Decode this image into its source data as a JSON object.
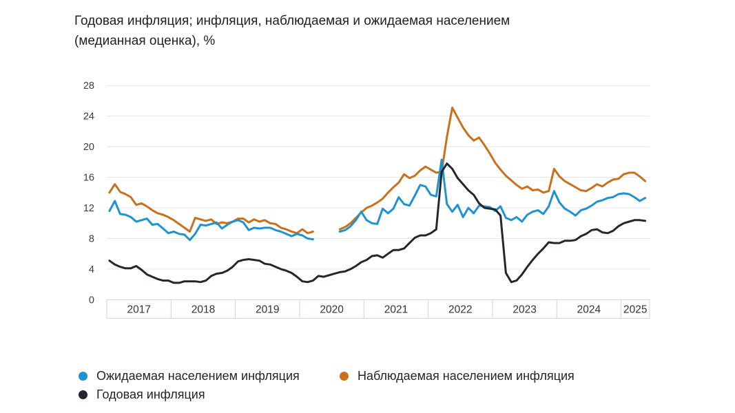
{
  "title_lines": [
    "Годовая инфляция; инфляция, наблюдаемая и ожидаемая населением",
    "(медианная оценка), %"
  ],
  "colors": {
    "grid": "#E4E4E4",
    "axis_box_border": "#C8D6E8",
    "tick_text": "#3C3C3C",
    "year_text": "#333333",
    "title_text": "#212121"
  },
  "chart_data": {
    "type": "line",
    "title": "Годовая инфляция; инфляция, наблюдаемая и ожидаемая населением (медианная оценка), %",
    "ylabel": "%",
    "ylim": [
      0,
      28
    ],
    "y_ticks": [
      28,
      24,
      20,
      16,
      12,
      8,
      4,
      0
    ],
    "x_year_labels": [
      "2017",
      "2018",
      "2019",
      "2020",
      "2021",
      "2022",
      "2023",
      "2024",
      "2025"
    ],
    "frequency": "monthly",
    "start": "2017-01",
    "end": "2025-05",
    "survey_gap_months": [
      "2020-04",
      "2020-05",
      "2020-06",
      "2020-07"
    ],
    "grid": "on",
    "legend_position": "bottom",
    "series": [
      {
        "id": "expected",
        "name": "Ожидаемая населением инфляция",
        "color": "#1E93D1",
        "values": [
          11.6,
          12.9,
          11.2,
          11.1,
          10.8,
          10.2,
          10.4,
          10.6,
          9.8,
          9.9,
          9.3,
          8.7,
          8.9,
          8.6,
          8.5,
          7.8,
          8.6,
          9.8,
          9.7,
          9.9,
          10.1,
          9.3,
          9.8,
          10.2,
          10.4,
          10.1,
          9.1,
          9.4,
          9.3,
          9.4,
          9.4,
          9.1,
          8.9,
          8.6,
          8.3,
          8.6,
          8.4,
          8.0,
          7.9,
          null,
          null,
          null,
          null,
          8.9,
          9.1,
          9.6,
          10.4,
          11.5,
          10.4,
          10.0,
          9.9,
          11.9,
          11.3,
          11.9,
          13.4,
          12.5,
          12.3,
          13.6,
          15.0,
          14.8,
          13.7,
          13.5,
          18.3,
          12.5,
          11.5,
          12.4,
          10.8,
          12.0,
          11.3,
          12.3,
          12.2,
          12.1,
          11.6,
          12.2,
          10.7,
          10.4,
          10.8,
          10.2,
          11.1,
          11.5,
          11.7,
          11.2,
          12.2,
          14.2,
          12.7,
          11.9,
          11.5,
          11.0,
          11.7,
          11.9,
          12.3,
          12.8,
          13.0,
          13.3,
          13.4,
          13.8,
          13.9,
          13.8,
          13.4,
          12.9,
          13.3
        ]
      },
      {
        "id": "observed",
        "name": "Наблюдаемая населением инфляция",
        "color": "#C8701B",
        "values": [
          14.0,
          15.1,
          14.1,
          13.8,
          13.4,
          12.4,
          12.6,
          12.2,
          11.7,
          11.3,
          11.1,
          10.8,
          10.4,
          9.9,
          9.4,
          8.9,
          10.7,
          10.5,
          10.3,
          10.5,
          9.9,
          10.1,
          10.0,
          10.2,
          10.6,
          10.6,
          10.1,
          10.5,
          10.2,
          10.4,
          10.0,
          9.9,
          9.4,
          9.2,
          8.9,
          8.7,
          9.2,
          8.7,
          8.9,
          null,
          null,
          null,
          null,
          9.2,
          9.5,
          10.0,
          10.7,
          11.4,
          12.0,
          12.3,
          12.7,
          13.2,
          14.0,
          14.7,
          15.3,
          16.4,
          15.9,
          16.2,
          16.9,
          17.4,
          17.0,
          16.6,
          16.7,
          21.3,
          25.1,
          23.8,
          22.5,
          21.5,
          20.8,
          21.2,
          20.2,
          19.1,
          17.9,
          17.0,
          16.2,
          15.6,
          15.0,
          14.5,
          14.8,
          14.3,
          14.4,
          14.0,
          14.2,
          17.1,
          16.1,
          15.5,
          15.1,
          14.7,
          14.3,
          14.2,
          14.6,
          15.1,
          14.8,
          15.3,
          15.7,
          15.8,
          16.4,
          16.6,
          16.6,
          16.1,
          15.5
        ]
      },
      {
        "id": "annual",
        "name": "Годовая инфляция",
        "color": "#23272D",
        "values": [
          5.1,
          4.6,
          4.3,
          4.1,
          4.1,
          4.4,
          3.9,
          3.3,
          3.0,
          2.7,
          2.5,
          2.5,
          2.2,
          2.2,
          2.4,
          2.4,
          2.4,
          2.3,
          2.5,
          3.1,
          3.4,
          3.5,
          3.8,
          4.3,
          5.0,
          5.2,
          5.3,
          5.2,
          5.1,
          4.7,
          4.6,
          4.3,
          4.0,
          3.8,
          3.5,
          3.0,
          2.4,
          2.3,
          2.5,
          3.1,
          3.0,
          3.2,
          3.4,
          3.6,
          3.7,
          4.0,
          4.4,
          4.9,
          5.2,
          5.7,
          5.8,
          5.5,
          6.0,
          6.5,
          6.5,
          6.7,
          7.4,
          8.1,
          8.4,
          8.4,
          8.7,
          9.2,
          16.7,
          17.8,
          17.1,
          15.9,
          15.1,
          14.3,
          13.7,
          12.6,
          12.0,
          11.9,
          11.8,
          11.0,
          3.5,
          2.3,
          2.5,
          3.3,
          4.3,
          5.2,
          6.0,
          6.7,
          7.5,
          7.4,
          7.4,
          7.7,
          7.7,
          7.8,
          8.3,
          8.6,
          9.1,
          9.2,
          8.8,
          8.7,
          9.0,
          9.6,
          10.0,
          10.2,
          10.4,
          10.4,
          10.3
        ]
      }
    ]
  }
}
